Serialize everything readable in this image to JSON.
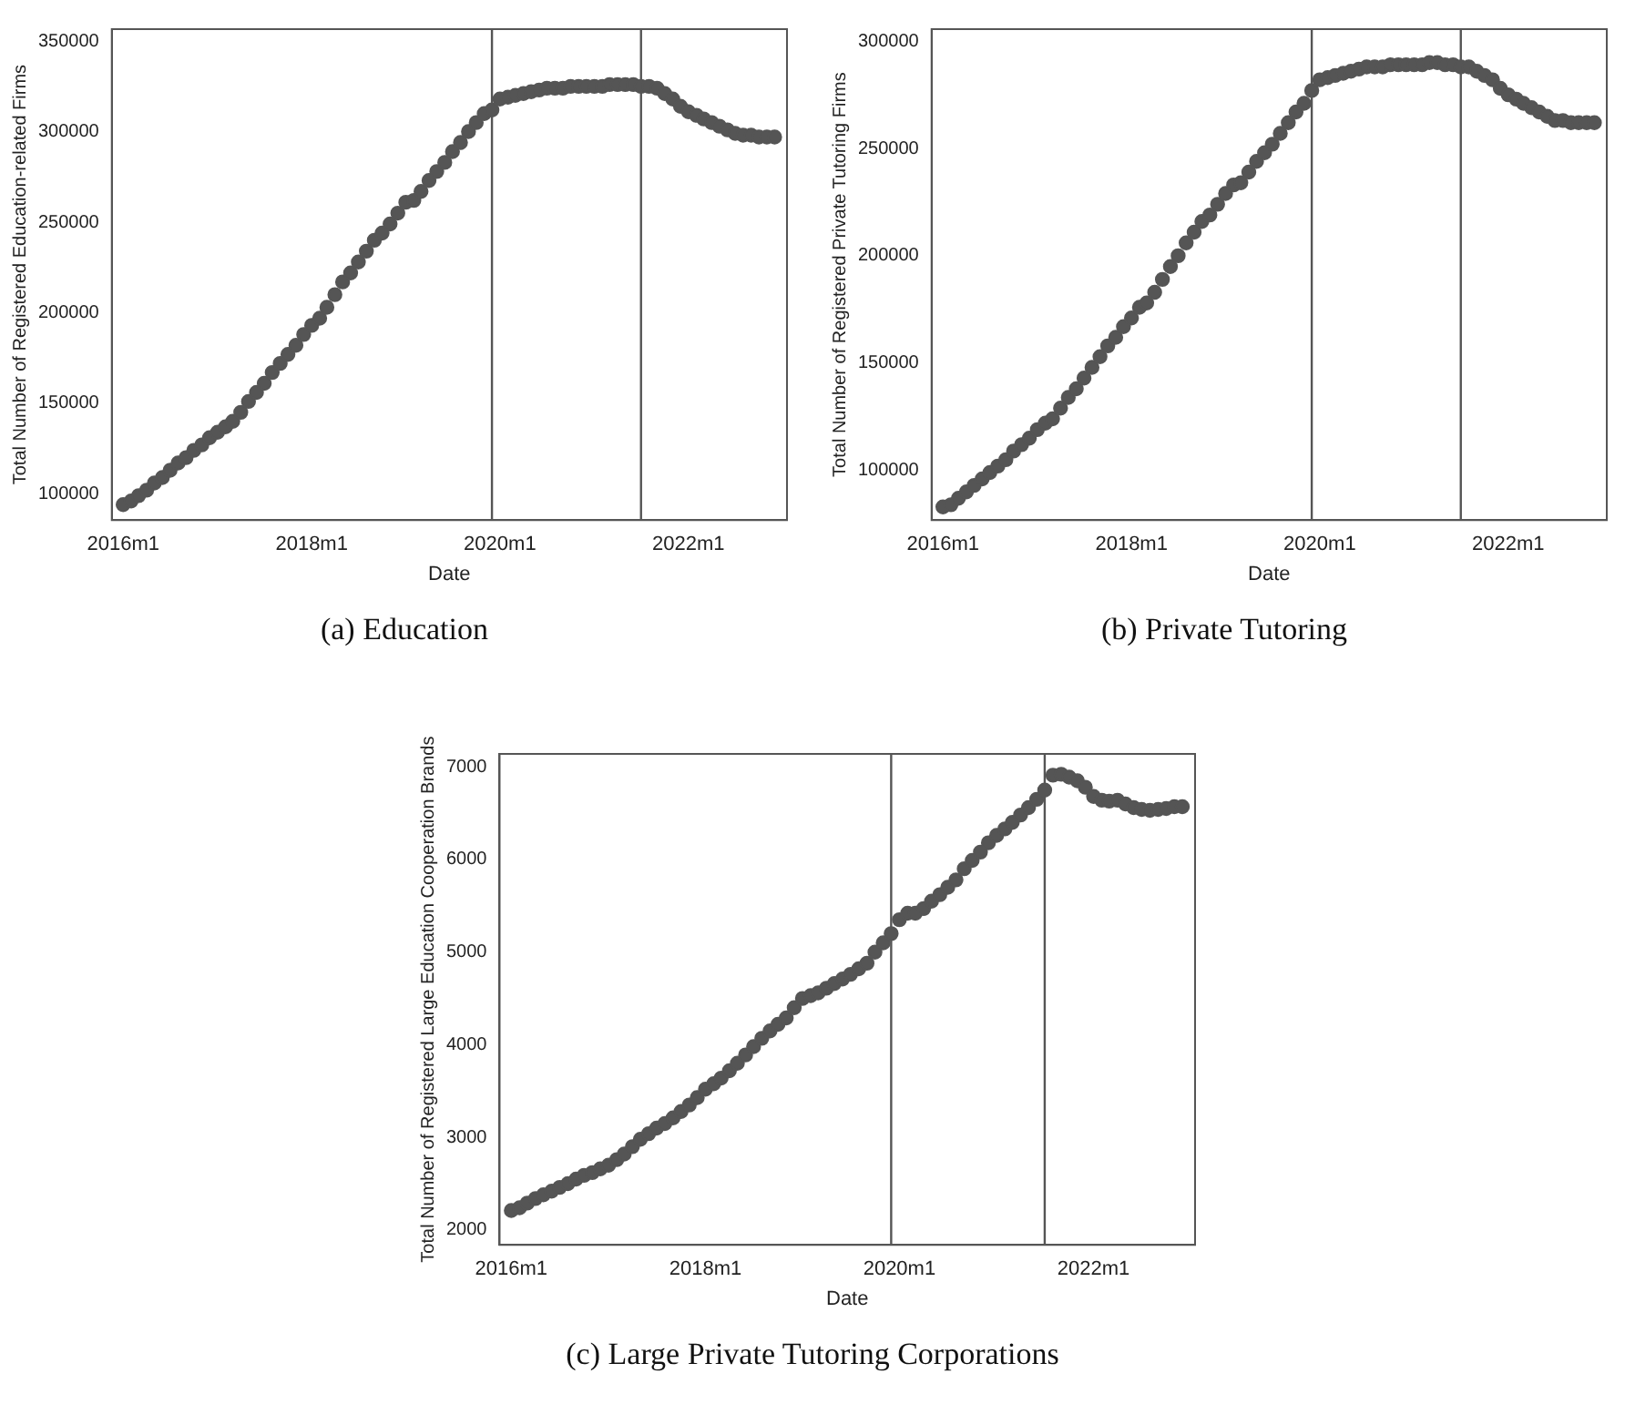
{
  "chart_data": [
    {
      "type": "scatter",
      "title": "(a)  Education",
      "xlabel": "Date",
      "ylabel": "Total Number of Registered Education-related Firms",
      "marker": "circle",
      "grid": false,
      "legend": false,
      "x": [
        "2016-01",
        "2016-02",
        "2016-03",
        "2016-04",
        "2016-05",
        "2016-06",
        "2016-07",
        "2016-08",
        "2016-09",
        "2016-10",
        "2016-11",
        "2016-12",
        "2017-01",
        "2017-02",
        "2017-03",
        "2017-04",
        "2017-05",
        "2017-06",
        "2017-07",
        "2017-08",
        "2017-09",
        "2017-10",
        "2017-11",
        "2017-12",
        "2018-01",
        "2018-02",
        "2018-03",
        "2018-04",
        "2018-05",
        "2018-06",
        "2018-07",
        "2018-08",
        "2018-09",
        "2018-10",
        "2018-11",
        "2018-12",
        "2019-01",
        "2019-02",
        "2019-03",
        "2019-04",
        "2019-05",
        "2019-06",
        "2019-07",
        "2019-08",
        "2019-09",
        "2019-10",
        "2019-11",
        "2019-12",
        "2020-01",
        "2020-02",
        "2020-03",
        "2020-04",
        "2020-05",
        "2020-06",
        "2020-07",
        "2020-08",
        "2020-09",
        "2020-10",
        "2020-11",
        "2020-12",
        "2021-01",
        "2021-02",
        "2021-03",
        "2021-04",
        "2021-05",
        "2021-06",
        "2021-07",
        "2021-08",
        "2021-09",
        "2021-10",
        "2021-11",
        "2021-12",
        "2022-01",
        "2022-02",
        "2022-03",
        "2022-04",
        "2022-05",
        "2022-06",
        "2022-07",
        "2022-08",
        "2022-09",
        "2022-10",
        "2022-11",
        "2022-12"
      ],
      "series": [
        {
          "color": "#555555",
          "values": [
            94000,
            96000,
            99000,
            102000,
            106000,
            109000,
            113000,
            117000,
            120000,
            124000,
            127000,
            131000,
            134000,
            137000,
            140000,
            145000,
            151000,
            156000,
            161000,
            167000,
            172000,
            177000,
            182000,
            188000,
            193000,
            197000,
            203000,
            210000,
            217000,
            222000,
            228000,
            234000,
            240000,
            244000,
            249000,
            255000,
            261000,
            262000,
            267000,
            273000,
            278000,
            283000,
            289000,
            294000,
            300000,
            305000,
            310000,
            312000,
            318000,
            319000,
            320000,
            321000,
            322000,
            323000,
            324000,
            324000,
            324000,
            325000,
            325000,
            325000,
            325000,
            325000,
            326000,
            326000,
            326000,
            326000,
            325000,
            325000,
            324000,
            321000,
            318000,
            314000,
            311000,
            309000,
            307000,
            305000,
            303000,
            301000,
            299000,
            298000,
            298000,
            297000,
            297000,
            297000
          ]
        }
      ],
      "xlim": [
        "2015-11-18",
        "2023-01-18"
      ],
      "xticks": [
        {
          "value": "2016-01",
          "label": "2016m1"
        },
        {
          "value": "2018-01",
          "label": "2018m1"
        },
        {
          "value": "2020-01",
          "label": "2020m1"
        },
        {
          "value": "2022-01",
          "label": "2022m1"
        }
      ],
      "ylim": [
        85500,
        356600
      ],
      "yticks": [
        100000,
        150000,
        200000,
        250000,
        300000,
        350000
      ],
      "ref_lines": [
        {
          "axis": "x",
          "value": "2019-12",
          "color": "#555555"
        },
        {
          "axis": "x",
          "value": "2021-07",
          "color": "#555555"
        }
      ]
    },
    {
      "type": "scatter",
      "title": "(b)  Private Tutoring",
      "xlabel": "Date",
      "ylabel": "Total Number of Registered Private Tutoring Firms",
      "marker": "circle",
      "grid": false,
      "legend": false,
      "x": [
        "2016-01",
        "2016-02",
        "2016-03",
        "2016-04",
        "2016-05",
        "2016-06",
        "2016-07",
        "2016-08",
        "2016-09",
        "2016-10",
        "2016-11",
        "2016-12",
        "2017-01",
        "2017-02",
        "2017-03",
        "2017-04",
        "2017-05",
        "2017-06",
        "2017-07",
        "2017-08",
        "2017-09",
        "2017-10",
        "2017-11",
        "2017-12",
        "2018-01",
        "2018-02",
        "2018-03",
        "2018-04",
        "2018-05",
        "2018-06",
        "2018-07",
        "2018-08",
        "2018-09",
        "2018-10",
        "2018-11",
        "2018-12",
        "2019-01",
        "2019-02",
        "2019-03",
        "2019-04",
        "2019-05",
        "2019-06",
        "2019-07",
        "2019-08",
        "2019-09",
        "2019-10",
        "2019-11",
        "2019-12",
        "2020-01",
        "2020-02",
        "2020-03",
        "2020-04",
        "2020-05",
        "2020-06",
        "2020-07",
        "2020-08",
        "2020-09",
        "2020-10",
        "2020-11",
        "2020-12",
        "2021-01",
        "2021-02",
        "2021-03",
        "2021-04",
        "2021-05",
        "2021-06",
        "2021-07",
        "2021-08",
        "2021-09",
        "2021-10",
        "2021-11",
        "2021-12",
        "2022-01",
        "2022-02",
        "2022-03",
        "2022-04",
        "2022-05",
        "2022-06",
        "2022-07",
        "2022-08",
        "2022-09",
        "2022-10",
        "2022-11",
        "2022-12"
      ],
      "series": [
        {
          "color": "#555555",
          "values": [
            83000,
            84000,
            87000,
            90000,
            93000,
            96000,
            99000,
            102000,
            105000,
            109000,
            112000,
            115000,
            119000,
            122000,
            124000,
            129000,
            134000,
            138000,
            143000,
            148000,
            153000,
            158000,
            162000,
            167000,
            171000,
            176000,
            178000,
            183000,
            189000,
            195000,
            200000,
            206000,
            211000,
            216000,
            219000,
            224000,
            229000,
            233000,
            234000,
            239000,
            244000,
            248000,
            252000,
            257000,
            262000,
            267000,
            271000,
            277000,
            282000,
            283000,
            284000,
            285000,
            286000,
            287000,
            288000,
            288000,
            288000,
            289000,
            289000,
            289000,
            289000,
            289000,
            290000,
            290000,
            289000,
            289000,
            288000,
            288000,
            286000,
            284000,
            282000,
            278000,
            275000,
            273000,
            271000,
            269000,
            267000,
            265000,
            263000,
            263000,
            262000,
            262000,
            262000,
            262000
          ]
        }
      ],
      "xlim": [
        "2015-11-18",
        "2023-01-18"
      ],
      "xticks": [
        {
          "value": "2016-01",
          "label": "2016m1"
        },
        {
          "value": "2018-01",
          "label": "2018m1"
        },
        {
          "value": "2020-01",
          "label": "2020m1"
        },
        {
          "value": "2022-01",
          "label": "2022m1"
        }
      ],
      "ylim": [
        76850,
        305600
      ],
      "yticks": [
        100000,
        150000,
        200000,
        250000,
        300000
      ],
      "ref_lines": [
        {
          "axis": "x",
          "value": "2019-12",
          "color": "#555555"
        },
        {
          "axis": "x",
          "value": "2021-07",
          "color": "#555555"
        }
      ]
    },
    {
      "type": "scatter",
      "title": "(c)  Large Private Tutoring Corporations",
      "xlabel": "Date",
      "ylabel": "Total Number of Registered Large Education Cooperation Brands",
      "marker": "circle",
      "grid": false,
      "legend": false,
      "x": [
        "2016-01",
        "2016-02",
        "2016-03",
        "2016-04",
        "2016-05",
        "2016-06",
        "2016-07",
        "2016-08",
        "2016-09",
        "2016-10",
        "2016-11",
        "2016-12",
        "2017-01",
        "2017-02",
        "2017-03",
        "2017-04",
        "2017-05",
        "2017-06",
        "2017-07",
        "2017-08",
        "2017-09",
        "2017-10",
        "2017-11",
        "2017-12",
        "2018-01",
        "2018-02",
        "2018-03",
        "2018-04",
        "2018-05",
        "2018-06",
        "2018-07",
        "2018-08",
        "2018-09",
        "2018-10",
        "2018-11",
        "2018-12",
        "2019-01",
        "2019-02",
        "2019-03",
        "2019-04",
        "2019-05",
        "2019-06",
        "2019-07",
        "2019-08",
        "2019-09",
        "2019-10",
        "2019-11",
        "2019-12",
        "2020-01",
        "2020-02",
        "2020-03",
        "2020-04",
        "2020-05",
        "2020-06",
        "2020-07",
        "2020-08",
        "2020-09",
        "2020-10",
        "2020-11",
        "2020-12",
        "2021-01",
        "2021-02",
        "2021-03",
        "2021-04",
        "2021-05",
        "2021-06",
        "2021-07",
        "2021-08",
        "2021-09",
        "2021-10",
        "2021-11",
        "2021-12",
        "2022-01",
        "2022-02",
        "2022-03",
        "2022-04",
        "2022-05",
        "2022-06",
        "2022-07",
        "2022-08",
        "2022-09",
        "2022-10",
        "2022-11",
        "2022-12"
      ],
      "series": [
        {
          "color": "#555555",
          "values": [
            2210,
            2240,
            2290,
            2340,
            2380,
            2420,
            2460,
            2500,
            2550,
            2590,
            2620,
            2660,
            2700,
            2760,
            2820,
            2900,
            2980,
            3040,
            3100,
            3150,
            3210,
            3280,
            3350,
            3430,
            3520,
            3580,
            3640,
            3720,
            3800,
            3890,
            3980,
            4070,
            4150,
            4220,
            4290,
            4400,
            4500,
            4530,
            4560,
            4610,
            4660,
            4710,
            4760,
            4820,
            4880,
            5000,
            5100,
            5200,
            5350,
            5420,
            5420,
            5470,
            5550,
            5620,
            5700,
            5780,
            5900,
            5990,
            6080,
            6180,
            6260,
            6330,
            6400,
            6480,
            6560,
            6650,
            6750,
            6910,
            6920,
            6890,
            6850,
            6780,
            6680,
            6640,
            6630,
            6640,
            6600,
            6560,
            6540,
            6530,
            6540,
            6550,
            6570,
            6570
          ]
        }
      ],
      "xlim": [
        "2015-11-18",
        "2023-01-18"
      ],
      "xticks": [
        {
          "value": "2016-01",
          "label": "2016m1"
        },
        {
          "value": "2018-01",
          "label": "2018m1"
        },
        {
          "value": "2020-01",
          "label": "2020m1"
        },
        {
          "value": "2022-01",
          "label": "2022m1"
        }
      ],
      "ylim": [
        1840,
        7140
      ],
      "yticks": [
        2000,
        3000,
        4000,
        5000,
        6000,
        7000
      ],
      "ref_lines": [
        {
          "axis": "x",
          "value": "2019-12",
          "color": "#555555"
        },
        {
          "axis": "x",
          "value": "2021-07",
          "color": "#555555"
        }
      ]
    }
  ]
}
